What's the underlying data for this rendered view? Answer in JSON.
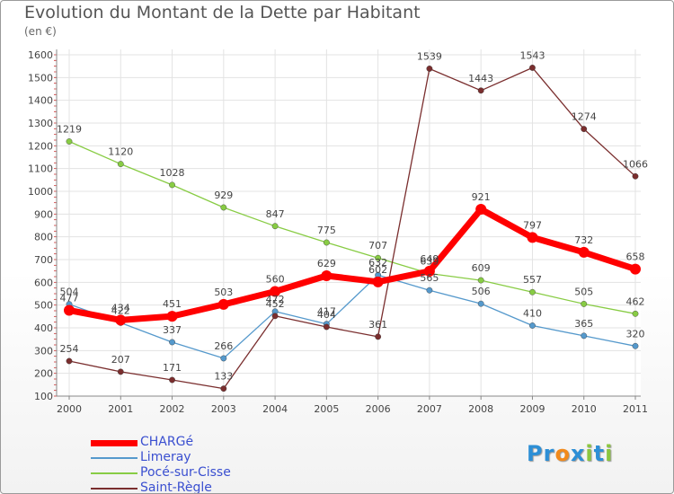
{
  "title": "Evolution du Montant de la Dette par Habitant",
  "unit": "(en €)",
  "brand": {
    "letters": [
      "P",
      "r",
      "o",
      "x",
      "i",
      "t",
      "i"
    ],
    "colors": [
      "#2d8fd6",
      "#2d8fd6",
      "#f28a1c",
      "#2d8fd6",
      "#8cc63f",
      "#2d8fd6",
      "#8cc63f"
    ]
  },
  "chart_data": {
    "type": "line",
    "x": [
      "2000",
      "2001",
      "2002",
      "2003",
      "2004",
      "2005",
      "2006",
      "2007",
      "2008",
      "2009",
      "2010",
      "2011"
    ],
    "ylim": [
      100,
      1600
    ],
    "yticks": [
      100,
      200,
      300,
      400,
      500,
      600,
      700,
      800,
      900,
      1000,
      1100,
      1200,
      1300,
      1400,
      1500,
      1600
    ],
    "grid": true,
    "legend_position": "bottom-left",
    "series": [
      {
        "name": "CHARGé",
        "color": "#ff0000",
        "width": 7,
        "marker": 6,
        "values": [
          477,
          434,
          451,
          503,
          560,
          629,
          602,
          649,
          921,
          797,
          732,
          658
        ],
        "labels": [
          "477",
          "434",
          "451",
          "503",
          "560",
          "629",
          "602",
          "649",
          "921",
          "797",
          "732",
          "658"
        ]
      },
      {
        "name": "Limeray",
        "color": "#5599cc",
        "width": 1.3,
        "marker": 3.2,
        "values": [
          504,
          422,
          337,
          266,
          472,
          417,
          632,
          565,
          506,
          410,
          365,
          320
        ],
        "labels": [
          "504",
          "422",
          "337",
          "266",
          "472",
          "417",
          "632",
          "565",
          "506",
          "410",
          "365",
          "320"
        ]
      },
      {
        "name": "Pocé-sur-Cisse",
        "color": "#88cc44",
        "width": 1.3,
        "marker": 3.2,
        "values": [
          1219,
          1120,
          1028,
          929,
          847,
          775,
          707,
          639,
          609,
          557,
          505,
          462
        ],
        "labels": [
          "1219",
          "1120",
          "1028",
          "929",
          "847",
          "775",
          "707",
          "639",
          "609",
          "557",
          "505",
          "462"
        ]
      },
      {
        "name": "Saint-Règle",
        "color": "#7a2e2e",
        "width": 1.3,
        "marker": 3.2,
        "segments": [
          [
            0,
            6
          ],
          [
            6,
            11
          ]
        ],
        "values": [
          254,
          207,
          171,
          133,
          452,
          404,
          361,
          1539,
          1443,
          1543,
          1274,
          1066
        ],
        "labels": [
          "254",
          "207",
          "171",
          "133",
          "452",
          "404",
          "361",
          "1539",
          "1443",
          "1543",
          "1274",
          "1066"
        ]
      }
    ]
  }
}
